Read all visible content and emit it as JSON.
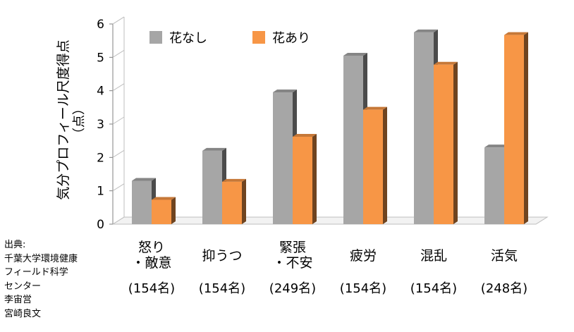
{
  "chart_data": {
    "type": "bar",
    "ylabel": "気分プロフィール尺度得点",
    "ylabel_unit": "（点）",
    "ylim": [
      0,
      6
    ],
    "yticks": [
      0,
      1,
      2,
      3,
      4,
      5,
      6
    ],
    "categories": [
      {
        "label": [
          "怒り",
          "・敵意"
        ],
        "n": "(154名)"
      },
      {
        "label": [
          "抑うつ"
        ],
        "n": "(154名)"
      },
      {
        "label": [
          "緊張",
          "・不安"
        ],
        "n": "(249名)"
      },
      {
        "label": [
          "疲労"
        ],
        "n": "(154名)"
      },
      {
        "label": [
          "混乱"
        ],
        "n": "(154名)"
      },
      {
        "label": [
          "活気"
        ],
        "n": "(248名)"
      }
    ],
    "series": [
      {
        "name": "花なし",
        "color": "#a6a6a6",
        "values": [
          1.3,
          2.2,
          3.95,
          5.05,
          5.75,
          2.3
        ]
      },
      {
        "name": "花あり",
        "color": "#f79646",
        "values": [
          0.73,
          1.27,
          2.62,
          3.43,
          4.78,
          5.67
        ]
      }
    ],
    "legend": "top-left",
    "grid": false
  },
  "source": {
    "label": "出典:",
    "lines": [
      "千葉大学環境健康",
      "フィールド科学",
      "センター",
      "李宙営",
      "宮崎良文"
    ]
  }
}
